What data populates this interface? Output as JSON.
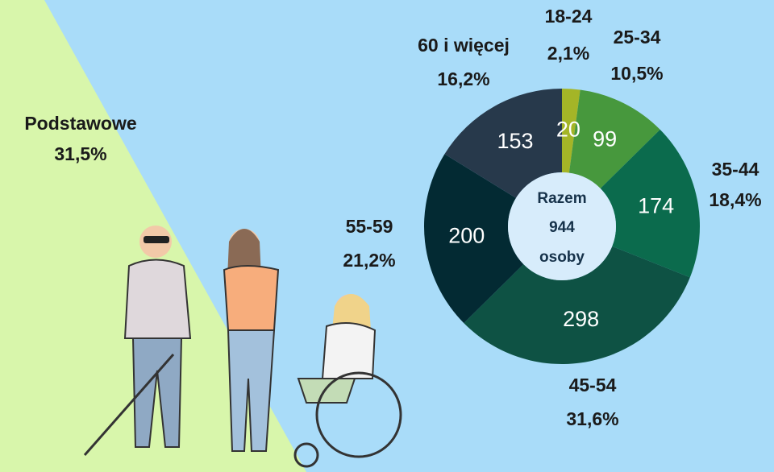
{
  "chart_data": {
    "type": "donut",
    "categories": [
      "18-24",
      "25-34",
      "35-44",
      "45-54",
      "55-59",
      "60 i więcej"
    ],
    "values": [
      20,
      99,
      174,
      298,
      200,
      153
    ],
    "percent_labels": [
      "2,1%",
      "10,5%",
      "18,4%",
      "31,6%",
      "21,2%",
      "16,2%"
    ],
    "colors": [
      "#a4b527",
      "#47983d",
      "#0b6b4d",
      "#0e5244",
      "#032a33",
      "#27394b"
    ],
    "center": {
      "title": "Razem",
      "total": "944",
      "unit": "osoby"
    },
    "annotation": {
      "label": "Podstawowe",
      "percent": "31,5%"
    }
  }
}
